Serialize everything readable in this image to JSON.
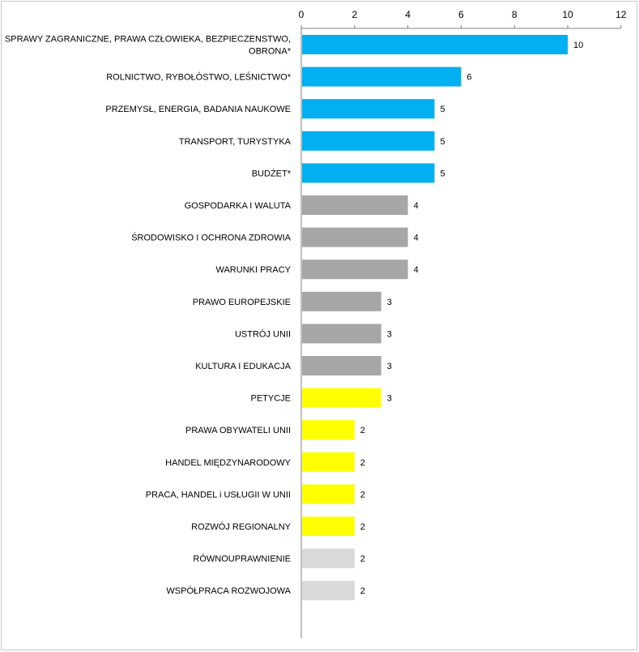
{
  "chart_data": {
    "type": "bar",
    "orientation": "horizontal",
    "categories": [
      [
        "SPRAWY ZAGRANICZNE,  PRAWA CZŁOWIEKA, BEZPIECZENSTWO,",
        "OBRONA*"
      ],
      "ROLNICTWO, RYBOŁÓSTWO, LEŚNICTWO*",
      "PRZEMYSŁ, ENERGIA,  BADANIA NAUKOWE",
      "TRANSPORT, TURYSTYKA",
      "BUDŻET*",
      "GOSPODARKA I WALUTA",
      "ŚRODOWISKO I OCHRONA ZDROWIA",
      "WARUNKI PRACY",
      "PRAWO EUROPEJSKIE",
      "USTRÓJ UNII",
      "KULTURA I EDUKACJA",
      "PETYCJE",
      "PRAWA OBYWATELI UNII",
      "HANDEL MIĘDZYNARODOWY",
      "PRACA, HANDEL i USŁUGII  W UNII",
      "ROZWÓJ REGIONALNY",
      "RÓWNOUPRAWNIENIE",
      "WSPÓŁPRACA ROZWOJOWA"
    ],
    "values": [
      10,
      6,
      5,
      5,
      5,
      4,
      4,
      4,
      3,
      3,
      3,
      3,
      2,
      2,
      2,
      2,
      2,
      2
    ],
    "bar_colors": [
      "#00b0f0",
      "#00b0f0",
      "#00b0f0",
      "#00b0f0",
      "#00b0f0",
      "#a6a6a6",
      "#a6a6a6",
      "#a6a6a6",
      "#a6a6a6",
      "#a6a6a6",
      "#a6a6a6",
      "#ffff00",
      "#ffff00",
      "#ffff00",
      "#ffff00",
      "#ffff00",
      "#d9d9d9",
      "#d9d9d9"
    ],
    "xlim": [
      0,
      12
    ],
    "xticks": [
      0,
      2,
      4,
      6,
      8,
      10,
      12
    ],
    "x_axis_position": "top",
    "grid": false,
    "data_labels": true,
    "title": "",
    "xlabel": "",
    "ylabel": ""
  }
}
